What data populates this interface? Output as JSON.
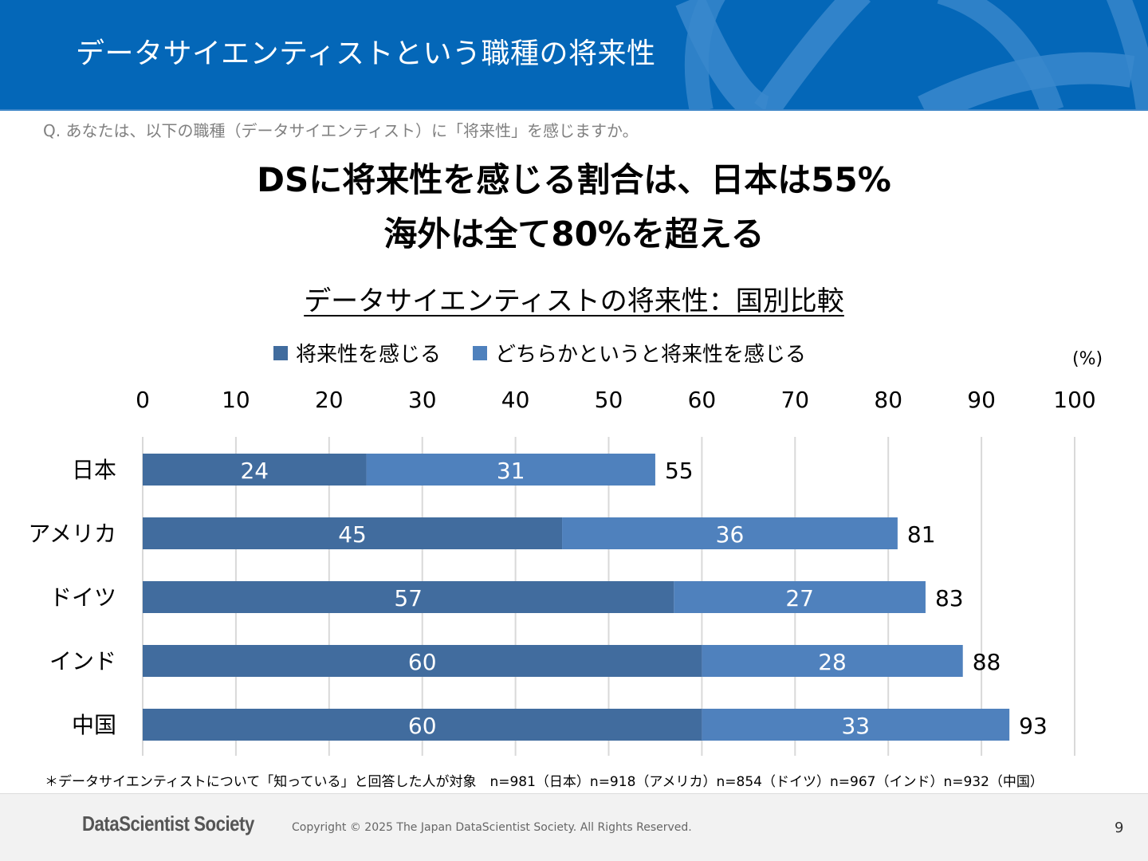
{
  "header": {
    "title": "データサイエンティストという職種の将来性",
    "background_color": "#0467b8"
  },
  "question": "Q. あなたは、以下の職種（データサイエンティスト）に「将来性」を感じますか。",
  "headline": {
    "line1": "DSに将来性を感じる割合は、日本は55%",
    "line2": "海外は全て80%を超える"
  },
  "footnote": "＊データサイエンティストについて「知っている」と回答した人が対象　n=981（日本）n=918（アメリカ）n=854（ドイツ）n=967（インド）n=932（中国）",
  "footer": {
    "logo": "DataScientist Society",
    "copyright": "Copyright © 2025 The Japan DataScientist Society. All Rights Reserved.",
    "page_number": "9"
  },
  "chart_data": {
    "type": "bar",
    "orientation": "horizontal",
    "stacked": true,
    "title": "データサイエンティストの将来性：国別比較",
    "unit_label": "(%)",
    "xlabel": "",
    "ylabel": "",
    "xlim": [
      0,
      100
    ],
    "x_ticks": [
      "0",
      "10",
      "20",
      "30",
      "40",
      "50",
      "60",
      "70",
      "80",
      "90",
      "100"
    ],
    "x_axis_position": "top",
    "grid": true,
    "legend_position": "top",
    "categories": [
      "日本",
      "アメリカ",
      "ドイツ",
      "インド",
      "中国"
    ],
    "series": [
      {
        "name": "将来性を感じる",
        "color": "#416c9e",
        "values": [
          24,
          45,
          57,
          60,
          60
        ]
      },
      {
        "name": "どちらかというと将来性を感じる",
        "color": "#4f81bd",
        "values": [
          31,
          36,
          27,
          28,
          33
        ]
      }
    ],
    "totals": [
      55,
      81,
      83,
      88,
      93
    ]
  }
}
